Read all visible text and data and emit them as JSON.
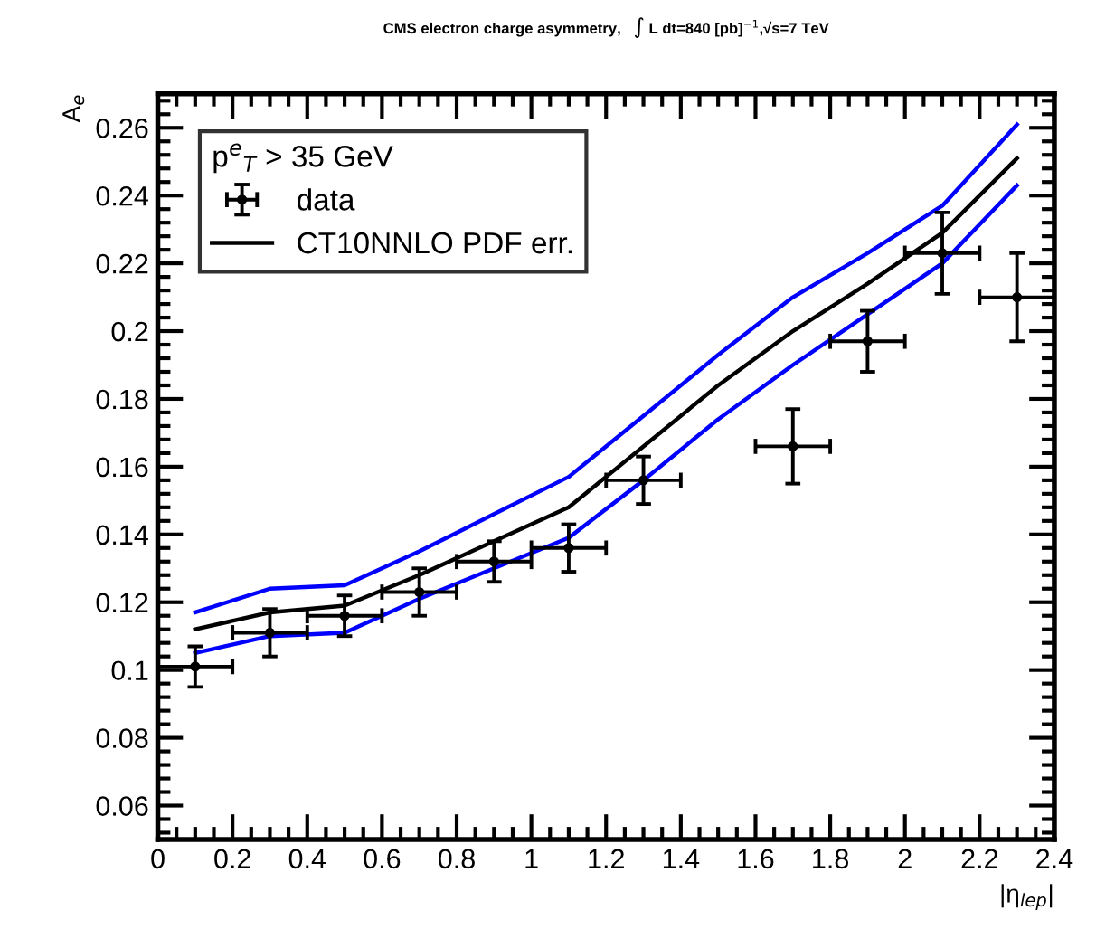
{
  "chart_data": {
    "type": "line",
    "title": "CMS electron charge asymmetry,   ∫ L dt=840 [pb]$^{−1}$,√s=7 TeV",
    "xlabel": "|η$_{lep}$|",
    "ylabel": "A$_{e}$",
    "legend_title": "p$^{e}$$_{T}$ > 35 GeV",
    "xlim": [
      0,
      2.4
    ],
    "ylim": [
      0.05,
      0.27
    ],
    "xticks": [
      0,
      0.2,
      0.4,
      0.6,
      0.8,
      1,
      1.2,
      1.4,
      1.6,
      1.8,
      2,
      2.2,
      2.4
    ],
    "yticks": [
      0.06,
      0.08,
      0.1,
      0.12,
      0.14,
      0.16,
      0.18,
      0.2,
      0.22,
      0.24,
      0.26
    ],
    "legend": "top left",
    "grid": false,
    "series": [
      {
        "name": "data",
        "type": "scatter",
        "color": "#000000",
        "marker": "circle",
        "x": [
          0.1,
          0.3,
          0.5,
          0.7,
          0.9,
          1.1,
          1.3,
          1.7,
          1.9,
          2.1,
          2.3
        ],
        "values": [
          0.101,
          0.111,
          0.116,
          0.123,
          0.132,
          0.136,
          0.156,
          0.166,
          0.197,
          0.223,
          0.21
        ],
        "errors": [
          0.006,
          0.007,
          0.006,
          0.007,
          0.006,
          0.007,
          0.007,
          0.011,
          0.009,
          0.012,
          0.013
        ],
        "xerrors": [
          0.1,
          0.1,
          0.1,
          0.1,
          0.1,
          0.1,
          0.1,
          0.1,
          0.1,
          0.1,
          0.1
        ]
      },
      {
        "name": "CT10NNLO PDF err.",
        "color": "#000000",
        "x": [
          0.1,
          0.3,
          0.5,
          0.7,
          0.9,
          1.1,
          1.3,
          1.5,
          1.7,
          1.9,
          2.1,
          2.3
        ],
        "values": [
          0.112,
          0.117,
          0.119,
          0.128,
          0.138,
          0.148,
          0.166,
          0.184,
          0.2,
          0.214,
          0.229,
          0.251
        ]
      },
      {
        "color": "#0000ff",
        "x": [
          0.1,
          0.3,
          0.5,
          0.7,
          0.9,
          1.1,
          1.3,
          1.5,
          1.7,
          1.9,
          2.1,
          2.3
        ],
        "values": [
          0.117,
          0.124,
          0.125,
          0.135,
          0.146,
          0.157,
          0.175,
          0.193,
          0.21,
          0.223,
          0.237,
          0.261
        ]
      },
      {
        "color": "#0000ff",
        "x": [
          0.1,
          0.3,
          0.5,
          0.7,
          0.9,
          1.1,
          1.3,
          1.5,
          1.7,
          1.9,
          2.1,
          2.3
        ],
        "values": [
          0.105,
          0.11,
          0.111,
          0.121,
          0.13,
          0.139,
          0.156,
          0.174,
          0.19,
          0.205,
          0.22,
          0.243
        ]
      }
    ]
  }
}
